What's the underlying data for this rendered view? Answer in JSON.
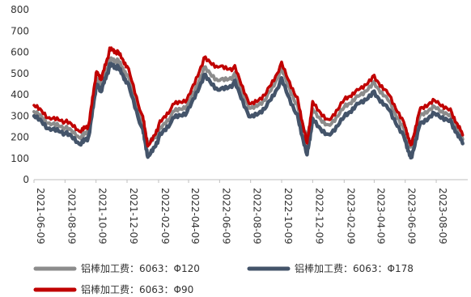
{
  "chart_data": {
    "type": "line",
    "title": "",
    "xlabel": "",
    "ylabel": "",
    "ylim": [
      0,
      800
    ],
    "yticks": [
      0,
      100,
      200,
      300,
      400,
      500,
      600,
      700,
      800
    ],
    "grid": false,
    "legend_position": "bottom",
    "x_tick_labels": [
      "2021-06-09",
      "2021-08-09",
      "2021-10-09",
      "2021-12-09",
      "2022-02-09",
      "2022-04-09",
      "2022-06-09",
      "2022-08-09",
      "2022-10-09",
      "2022-12-09",
      "2023-02-09",
      "2023-04-09",
      "2023-06-09",
      "2023-08-09"
    ],
    "x": [
      "2021-06-09",
      "2021-07-09",
      "2021-08-09",
      "2021-09-09",
      "2021-09-25",
      "2021-10-09",
      "2021-10-20",
      "2021-11-05",
      "2021-11-20",
      "2021-12-09",
      "2022-01-09",
      "2022-01-20",
      "2022-02-09",
      "2022-03-09",
      "2022-04-09",
      "2022-05-09",
      "2022-06-09",
      "2022-07-09",
      "2022-08-09",
      "2022-09-09",
      "2022-10-09",
      "2022-11-09",
      "2022-11-28",
      "2022-12-09",
      "2023-01-09",
      "2023-02-09",
      "2023-03-09",
      "2023-04-09",
      "2023-05-09",
      "2023-06-09",
      "2023-06-20",
      "2023-07-09",
      "2023-08-09",
      "2023-09-09",
      "2023-09-30"
    ],
    "series": [
      {
        "name": "铝棒加工费：6063：Φ120",
        "color": "#8c8c8c",
        "values": [
          320,
          260,
          245,
          195,
          230,
          470,
          445,
          560,
          560,
          495,
          260,
          165,
          225,
          315,
          355,
          525,
          465,
          490,
          330,
          385,
          520,
          345,
          195,
          330,
          250,
          345,
          395,
          455,
          370,
          225,
          150,
          310,
          345,
          290,
          190
        ]
      },
      {
        "name": "铝棒加工费：6063：Φ178",
        "color": "#44546a",
        "values": [
          300,
          235,
          220,
          165,
          200,
          440,
          420,
          535,
          530,
          460,
          230,
          100,
          195,
          285,
          325,
          490,
          420,
          455,
          290,
          345,
          470,
          300,
          120,
          285,
          205,
          300,
          360,
          410,
          330,
          190,
          100,
          270,
          315,
          265,
          170
        ]
      },
      {
        "name": "铝棒加工费：6063：Φ90",
        "color": "#c00000",
        "values": [
          350,
          285,
          275,
          225,
          255,
          500,
          475,
          610,
          600,
          535,
          290,
          150,
          255,
          350,
          385,
          570,
          530,
          525,
          350,
          410,
          545,
          380,
          175,
          365,
          275,
          380,
          425,
          485,
          400,
          255,
          160,
          340,
          375,
          315,
          210
        ]
      }
    ]
  }
}
